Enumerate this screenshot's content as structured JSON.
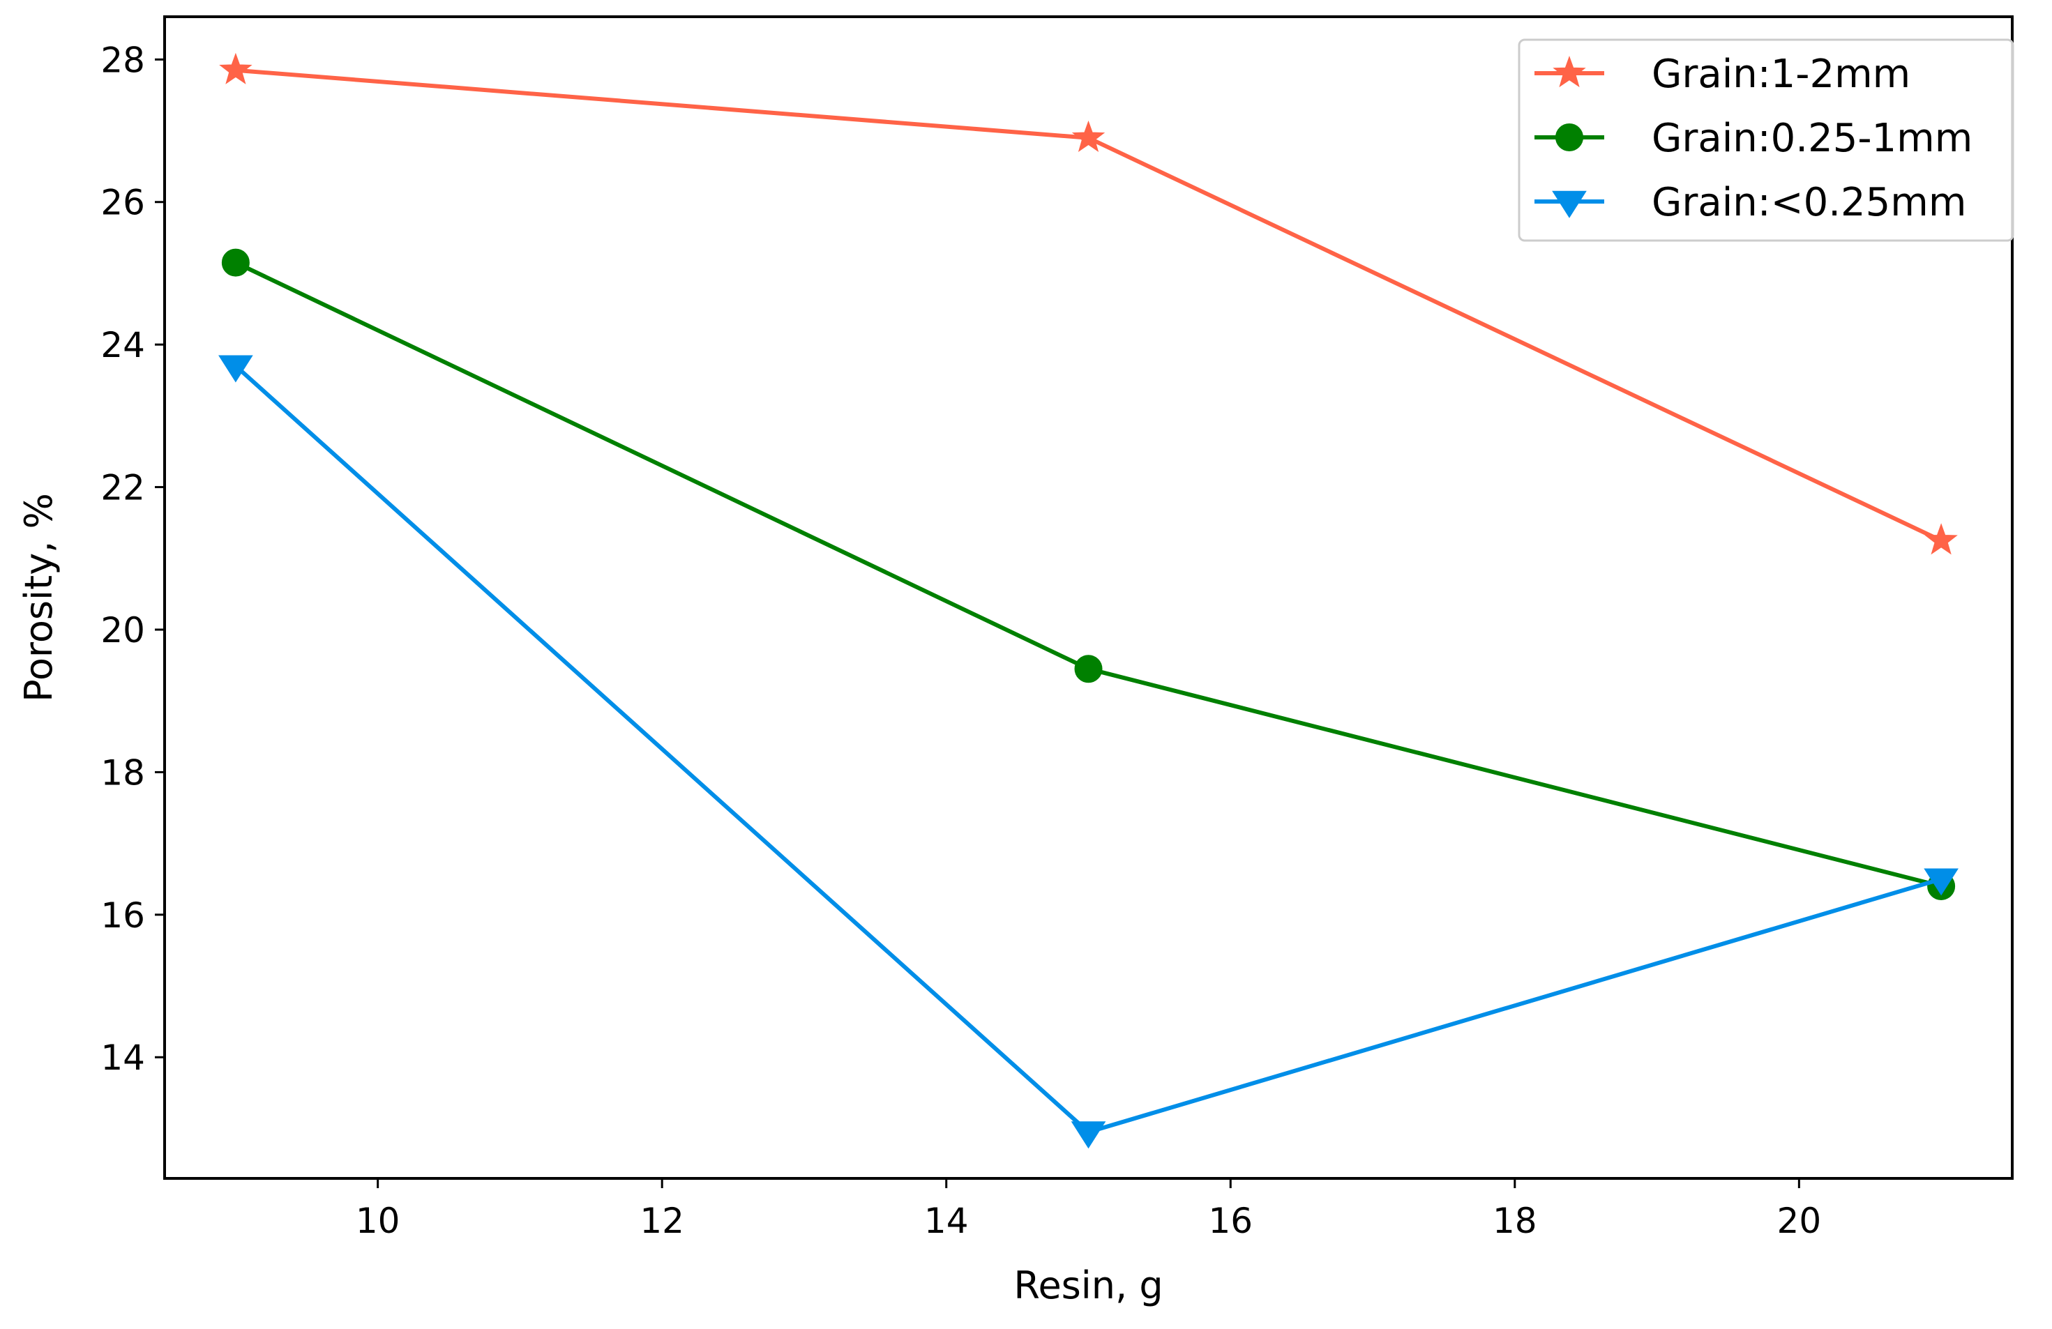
{
  "chart_data": {
    "type": "line",
    "title": "",
    "xlabel": "Resin, g",
    "ylabel": "Porosity, %",
    "xlim": [
      8.5,
      21.5
    ],
    "ylim": [
      12.3,
      28.6
    ],
    "xticks": [
      10,
      12,
      14,
      16,
      18,
      20
    ],
    "yticks": [
      14,
      16,
      18,
      20,
      22,
      24,
      26,
      28
    ],
    "grid": false,
    "legend_position": "top-right",
    "series": [
      {
        "name": "Grain:1-2mm",
        "color": "#ff6347",
        "marker": "star",
        "x": [
          9,
          15,
          21
        ],
        "y": [
          27.85,
          26.9,
          21.25
        ]
      },
      {
        "name": "Grain:0.25-1mm",
        "color": "#008000",
        "marker": "circle",
        "x": [
          9,
          15,
          21
        ],
        "y": [
          25.15,
          19.45,
          16.4
        ]
      },
      {
        "name": "Grain:<0.25mm",
        "color": "#008ee8",
        "marker": "triangle-down",
        "x": [
          9,
          15,
          21
        ],
        "y": [
          23.7,
          12.95,
          16.5
        ]
      }
    ]
  }
}
